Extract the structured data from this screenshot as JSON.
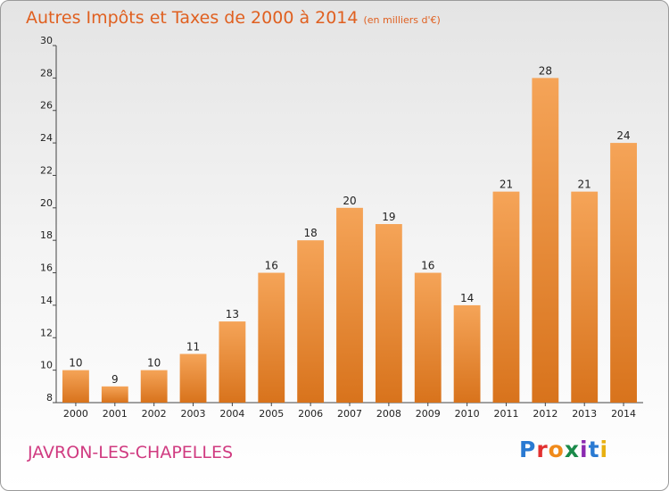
{
  "header": {
    "title": "Autres Impôts et Taxes de 2000 à 2014",
    "subtitle": "(en milliers d'€)"
  },
  "footer": {
    "commune": "JAVRON-LES-CHAPELLES"
  },
  "logo": {
    "text": "Proxiti",
    "letters": [
      {
        "char": "P",
        "color": "#2a7ad2"
      },
      {
        "char": "r",
        "color": "#e23030"
      },
      {
        "char": "o",
        "color": "#f08a1a"
      },
      {
        "char": "x",
        "color": "#1a8a4a"
      },
      {
        "char": "i",
        "color": "#8a2ab0"
      },
      {
        "char": "t",
        "color": "#2a7ad2"
      },
      {
        "char": "i",
        "color": "#e8b010"
      }
    ]
  },
  "chart_data": {
    "type": "bar",
    "title": "Autres Impôts et Taxes de 2000 à 2014",
    "subtitle": "(en milliers d'€)",
    "xlabel": "",
    "ylabel": "",
    "categories": [
      "2000",
      "2001",
      "2002",
      "2003",
      "2004",
      "2005",
      "2006",
      "2007",
      "2008",
      "2009",
      "2010",
      "2011",
      "2012",
      "2013",
      "2014"
    ],
    "values": [
      10,
      9,
      10,
      11,
      13,
      16,
      18,
      20,
      19,
      16,
      14,
      21,
      28,
      21,
      24
    ],
    "ylim": [
      8,
      30
    ],
    "yticks": [
      8,
      10,
      12,
      14,
      16,
      18,
      20,
      22,
      24,
      26,
      28,
      30
    ],
    "grid": false,
    "legend": "none",
    "bar_color_top": "#f5a458",
    "bar_color_bottom": "#d8731c"
  }
}
